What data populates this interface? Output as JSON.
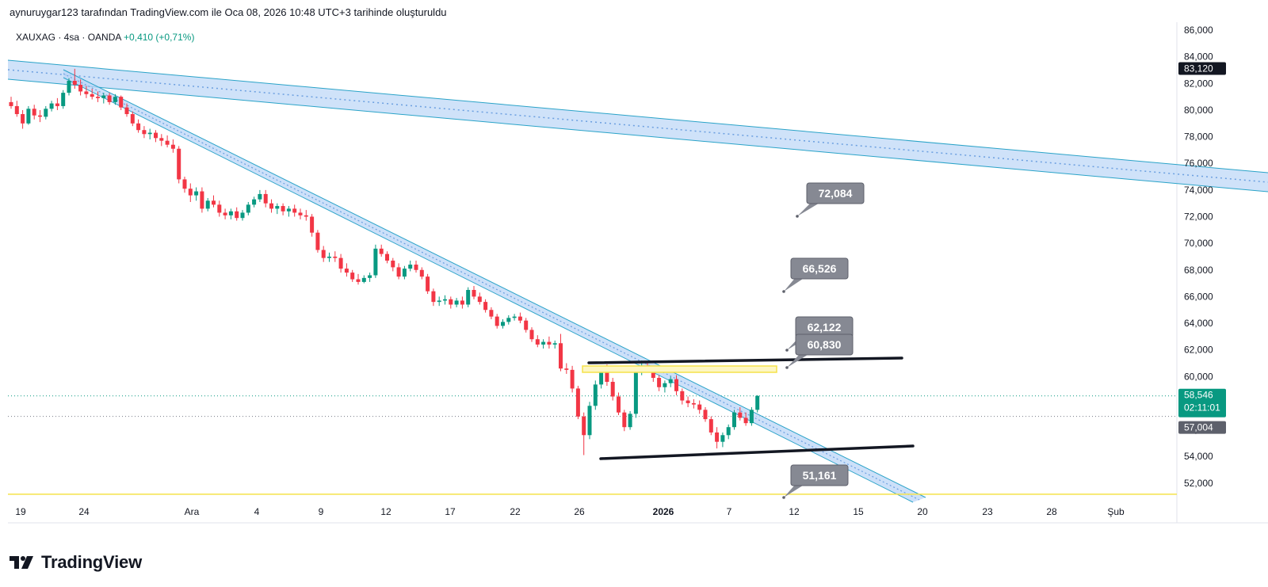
{
  "header": {
    "caption": "aynuruygar123 tarafından TradingView.com ile Oca 08, 2026 10:48 UTC+3 tarihinde oluşturuldu"
  },
  "symbol": {
    "name": "XAUXAG · 4sa · OANDA",
    "change": "+0,410 (+0,71%)"
  },
  "brand": {
    "name": "TradingView"
  },
  "colors": {
    "up": "#089981",
    "down": "#f23645",
    "channel_fill": "#bbd6f7",
    "channel_line": "#2aa3c8",
    "box_yellow": "#f5e24a",
    "hline_yellow": "#f5e24a",
    "callout": "#868993"
  },
  "chart_data": {
    "type": "candlestick",
    "y_axis": {
      "min": 50800,
      "max": 86600,
      "ticks": [
        "86,000",
        "84,000",
        "82,000",
        "80,000",
        "78,000",
        "76,000",
        "74,000",
        "72,000",
        "70,000",
        "68,000",
        "66,000",
        "64,000",
        "62,000",
        "60,000",
        "58,000",
        "56,000",
        "54,000",
        "52,000"
      ]
    },
    "x_axis": {
      "ticks": [
        "19",
        "24",
        "Ara",
        "4",
        "9",
        "12",
        "17",
        "22",
        "26",
        "2026",
        "7",
        "12",
        "15",
        "20",
        "23",
        "28",
        "Şub"
      ]
    },
    "price_labels": {
      "high_marker": "83,120",
      "last_price": "58,546",
      "countdown": "02:11:01",
      "prev_close": "57,004"
    },
    "callouts": [
      "72,084",
      "66,526",
      "62,122",
      "60,830",
      "51,161"
    ],
    "horizontal_line": 51161,
    "series": [
      {
        "t": 0,
        "o": 80600,
        "h": 81000,
        "l": 80100,
        "c": 80300
      },
      {
        "t": 1,
        "o": 80300,
        "h": 80700,
        "l": 79500,
        "c": 79700
      },
      {
        "t": 2,
        "o": 79700,
        "h": 80000,
        "l": 78600,
        "c": 79000
      },
      {
        "t": 3,
        "o": 79000,
        "h": 80300,
        "l": 78900,
        "c": 80100
      },
      {
        "t": 4,
        "o": 80100,
        "h": 80400,
        "l": 79300,
        "c": 79600
      },
      {
        "t": 5,
        "o": 79600,
        "h": 80000,
        "l": 79100,
        "c": 79500
      },
      {
        "t": 6,
        "o": 79500,
        "h": 80300,
        "l": 79300,
        "c": 80100
      },
      {
        "t": 7,
        "o": 80100,
        "h": 80700,
        "l": 79900,
        "c": 80500
      },
      {
        "t": 8,
        "o": 80500,
        "h": 80900,
        "l": 80000,
        "c": 80300
      },
      {
        "t": 9,
        "o": 80300,
        "h": 81500,
        "l": 80100,
        "c": 81300
      },
      {
        "t": 10,
        "o": 81300,
        "h": 82400,
        "l": 81100,
        "c": 82200
      },
      {
        "t": 11,
        "o": 82200,
        "h": 83100,
        "l": 81600,
        "c": 81900
      },
      {
        "t": 12,
        "o": 81900,
        "h": 82300,
        "l": 81100,
        "c": 81400
      },
      {
        "t": 13,
        "o": 81400,
        "h": 81800,
        "l": 80900,
        "c": 81200
      },
      {
        "t": 14,
        "o": 81200,
        "h": 81600,
        "l": 80800,
        "c": 81000
      },
      {
        "t": 15,
        "o": 81000,
        "h": 81400,
        "l": 80600,
        "c": 80900
      },
      {
        "t": 16,
        "o": 80900,
        "h": 81300,
        "l": 80500,
        "c": 81100
      },
      {
        "t": 17,
        "o": 81100,
        "h": 81300,
        "l": 80400,
        "c": 80600
      },
      {
        "t": 18,
        "o": 80600,
        "h": 81200,
        "l": 80400,
        "c": 81000
      },
      {
        "t": 19,
        "o": 81000,
        "h": 81100,
        "l": 80000,
        "c": 80200
      },
      {
        "t": 20,
        "o": 80200,
        "h": 80500,
        "l": 79500,
        "c": 79700
      },
      {
        "t": 21,
        "o": 79700,
        "h": 79900,
        "l": 78800,
        "c": 79000
      },
      {
        "t": 22,
        "o": 79000,
        "h": 79300,
        "l": 78300,
        "c": 78500
      },
      {
        "t": 23,
        "o": 78500,
        "h": 78800,
        "l": 77900,
        "c": 78200
      },
      {
        "t": 24,
        "o": 78200,
        "h": 78600,
        "l": 77800,
        "c": 78300
      },
      {
        "t": 25,
        "o": 78300,
        "h": 78500,
        "l": 77600,
        "c": 77900
      },
      {
        "t": 26,
        "o": 77900,
        "h": 78200,
        "l": 77300,
        "c": 77700
      },
      {
        "t": 27,
        "o": 77700,
        "h": 78100,
        "l": 77200,
        "c": 77400
      },
      {
        "t": 28,
        "o": 77400,
        "h": 77800,
        "l": 76800,
        "c": 77100
      },
      {
        "t": 29,
        "o": 77100,
        "h": 77300,
        "l": 74500,
        "c": 74800
      },
      {
        "t": 30,
        "o": 74800,
        "h": 75000,
        "l": 73800,
        "c": 74100
      },
      {
        "t": 31,
        "o": 74100,
        "h": 74500,
        "l": 73100,
        "c": 73600
      },
      {
        "t": 32,
        "o": 73600,
        "h": 74200,
        "l": 73200,
        "c": 73900
      },
      {
        "t": 33,
        "o": 73900,
        "h": 74200,
        "l": 72300,
        "c": 72600
      },
      {
        "t": 34,
        "o": 72600,
        "h": 73400,
        "l": 72400,
        "c": 73200
      },
      {
        "t": 35,
        "o": 73200,
        "h": 73600,
        "l": 72700,
        "c": 72900
      },
      {
        "t": 36,
        "o": 72900,
        "h": 73200,
        "l": 72000,
        "c": 72300
      },
      {
        "t": 37,
        "o": 72300,
        "h": 72600,
        "l": 71800,
        "c": 72100
      },
      {
        "t": 38,
        "o": 72100,
        "h": 72600,
        "l": 71800,
        "c": 72400
      },
      {
        "t": 39,
        "o": 72400,
        "h": 72700,
        "l": 71700,
        "c": 71900
      },
      {
        "t": 40,
        "o": 71900,
        "h": 72500,
        "l": 71700,
        "c": 72300
      },
      {
        "t": 41,
        "o": 72300,
        "h": 73100,
        "l": 72100,
        "c": 72900
      },
      {
        "t": 42,
        "o": 72900,
        "h": 73500,
        "l": 72700,
        "c": 73300
      },
      {
        "t": 43,
        "o": 73300,
        "h": 74000,
        "l": 73100,
        "c": 73700
      },
      {
        "t": 44,
        "o": 73700,
        "h": 74000,
        "l": 72700,
        "c": 73000
      },
      {
        "t": 45,
        "o": 73000,
        "h": 73300,
        "l": 72300,
        "c": 72600
      },
      {
        "t": 46,
        "o": 72600,
        "h": 73000,
        "l": 72200,
        "c": 72800
      },
      {
        "t": 47,
        "o": 72800,
        "h": 73000,
        "l": 72100,
        "c": 72400
      },
      {
        "t": 48,
        "o": 72400,
        "h": 72800,
        "l": 72000,
        "c": 72600
      },
      {
        "t": 49,
        "o": 72600,
        "h": 72900,
        "l": 72000,
        "c": 72300
      },
      {
        "t": 50,
        "o": 72300,
        "h": 72600,
        "l": 71800,
        "c": 72100
      },
      {
        "t": 51,
        "o": 72100,
        "h": 72500,
        "l": 71700,
        "c": 72000
      },
      {
        "t": 52,
        "o": 72000,
        "h": 72200,
        "l": 70500,
        "c": 70800
      },
      {
        "t": 53,
        "o": 70800,
        "h": 71000,
        "l": 69300,
        "c": 69500
      },
      {
        "t": 54,
        "o": 69500,
        "h": 69800,
        "l": 68600,
        "c": 68900
      },
      {
        "t": 55,
        "o": 68900,
        "h": 69300,
        "l": 68600,
        "c": 69000
      },
      {
        "t": 56,
        "o": 69000,
        "h": 69400,
        "l": 68600,
        "c": 68900
      },
      {
        "t": 57,
        "o": 68900,
        "h": 69200,
        "l": 67800,
        "c": 68100
      },
      {
        "t": 58,
        "o": 68100,
        "h": 68500,
        "l": 67500,
        "c": 67800
      },
      {
        "t": 59,
        "o": 67800,
        "h": 68000,
        "l": 67100,
        "c": 67300
      },
      {
        "t": 60,
        "o": 67300,
        "h": 67700,
        "l": 66900,
        "c": 67100
      },
      {
        "t": 61,
        "o": 67100,
        "h": 67600,
        "l": 67000,
        "c": 67400
      },
      {
        "t": 62,
        "o": 67400,
        "h": 67800,
        "l": 67100,
        "c": 67600
      },
      {
        "t": 63,
        "o": 67600,
        "h": 69900,
        "l": 67400,
        "c": 69600
      },
      {
        "t": 64,
        "o": 69600,
        "h": 69900,
        "l": 69000,
        "c": 69200
      },
      {
        "t": 65,
        "o": 69200,
        "h": 69400,
        "l": 68500,
        "c": 68700
      },
      {
        "t": 66,
        "o": 68700,
        "h": 68900,
        "l": 67900,
        "c": 68200
      },
      {
        "t": 67,
        "o": 68200,
        "h": 68500,
        "l": 67300,
        "c": 67500
      },
      {
        "t": 68,
        "o": 67500,
        "h": 68300,
        "l": 67300,
        "c": 68100
      },
      {
        "t": 69,
        "o": 68100,
        "h": 68700,
        "l": 67900,
        "c": 68400
      },
      {
        "t": 70,
        "o": 68400,
        "h": 68700,
        "l": 67800,
        "c": 68000
      },
      {
        "t": 71,
        "o": 68000,
        "h": 68200,
        "l": 67300,
        "c": 67500
      },
      {
        "t": 72,
        "o": 67500,
        "h": 67700,
        "l": 66200,
        "c": 66400
      },
      {
        "t": 73,
        "o": 66400,
        "h": 66600,
        "l": 65300,
        "c": 65600
      },
      {
        "t": 74,
        "o": 65600,
        "h": 66000,
        "l": 65300,
        "c": 65700
      },
      {
        "t": 75,
        "o": 65700,
        "h": 66100,
        "l": 65400,
        "c": 65800
      },
      {
        "t": 76,
        "o": 65800,
        "h": 66000,
        "l": 65100,
        "c": 65400
      },
      {
        "t": 77,
        "o": 65400,
        "h": 65900,
        "l": 65200,
        "c": 65700
      },
      {
        "t": 78,
        "o": 65700,
        "h": 66000,
        "l": 65100,
        "c": 65400
      },
      {
        "t": 79,
        "o": 65400,
        "h": 66700,
        "l": 65200,
        "c": 66500
      },
      {
        "t": 80,
        "o": 66500,
        "h": 66800,
        "l": 65800,
        "c": 66000
      },
      {
        "t": 81,
        "o": 66000,
        "h": 66300,
        "l": 65400,
        "c": 65600
      },
      {
        "t": 82,
        "o": 65600,
        "h": 65800,
        "l": 64800,
        "c": 65000
      },
      {
        "t": 83,
        "o": 65000,
        "h": 65200,
        "l": 64300,
        "c": 64500
      },
      {
        "t": 84,
        "o": 64500,
        "h": 64700,
        "l": 63600,
        "c": 63800
      },
      {
        "t": 85,
        "o": 63800,
        "h": 64300,
        "l": 63600,
        "c": 64100
      },
      {
        "t": 86,
        "o": 64100,
        "h": 64600,
        "l": 63900,
        "c": 64400
      },
      {
        "t": 87,
        "o": 64400,
        "h": 64700,
        "l": 64200,
        "c": 64500
      },
      {
        "t": 88,
        "o": 64500,
        "h": 64800,
        "l": 64000,
        "c": 64200
      },
      {
        "t": 89,
        "o": 64200,
        "h": 64400,
        "l": 63300,
        "c": 63500
      },
      {
        "t": 90,
        "o": 63500,
        "h": 63700,
        "l": 62600,
        "c": 62800
      },
      {
        "t": 91,
        "o": 62800,
        "h": 63100,
        "l": 62200,
        "c": 62400
      },
      {
        "t": 92,
        "o": 62400,
        "h": 62800,
        "l": 62100,
        "c": 62600
      },
      {
        "t": 93,
        "o": 62600,
        "h": 63000,
        "l": 62100,
        "c": 62400
      },
      {
        "t": 94,
        "o": 62400,
        "h": 62700,
        "l": 62100,
        "c": 62500
      },
      {
        "t": 95,
        "o": 62500,
        "h": 63200,
        "l": 60400,
        "c": 60600
      },
      {
        "t": 96,
        "o": 60600,
        "h": 61000,
        "l": 60200,
        "c": 60500
      },
      {
        "t": 97,
        "o": 60500,
        "h": 60800,
        "l": 58800,
        "c": 59100
      },
      {
        "t": 98,
        "o": 59100,
        "h": 59300,
        "l": 56800,
        "c": 57000
      },
      {
        "t": 99,
        "o": 57000,
        "h": 57300,
        "l": 54100,
        "c": 55600
      },
      {
        "t": 100,
        "o": 55600,
        "h": 58100,
        "l": 55300,
        "c": 57800
      },
      {
        "t": 101,
        "o": 57800,
        "h": 59700,
        "l": 57500,
        "c": 59400
      },
      {
        "t": 102,
        "o": 59400,
        "h": 60800,
        "l": 59100,
        "c": 60500
      },
      {
        "t": 103,
        "o": 60500,
        "h": 60900,
        "l": 59300,
        "c": 59600
      },
      {
        "t": 104,
        "o": 59600,
        "h": 59900,
        "l": 58200,
        "c": 58500
      },
      {
        "t": 105,
        "o": 58500,
        "h": 58800,
        "l": 57100,
        "c": 57300
      },
      {
        "t": 106,
        "o": 57300,
        "h": 57500,
        "l": 55900,
        "c": 56200
      },
      {
        "t": 107,
        "o": 56200,
        "h": 57400,
        "l": 56000,
        "c": 57200
      },
      {
        "t": 108,
        "o": 57200,
        "h": 60700,
        "l": 56900,
        "c": 60400
      },
      {
        "t": 109,
        "o": 60400,
        "h": 61200,
        "l": 60100,
        "c": 60800
      },
      {
        "t": 110,
        "o": 60800,
        "h": 61100,
        "l": 60300,
        "c": 60600
      },
      {
        "t": 111,
        "o": 60600,
        "h": 60800,
        "l": 59600,
        "c": 59900
      },
      {
        "t": 112,
        "o": 59900,
        "h": 60100,
        "l": 58900,
        "c": 59200
      },
      {
        "t": 113,
        "o": 59200,
        "h": 59700,
        "l": 58800,
        "c": 59500
      },
      {
        "t": 114,
        "o": 59500,
        "h": 60000,
        "l": 59200,
        "c": 59800
      },
      {
        "t": 115,
        "o": 59800,
        "h": 60100,
        "l": 58600,
        "c": 58900
      },
      {
        "t": 116,
        "o": 58900,
        "h": 59100,
        "l": 57900,
        "c": 58200
      },
      {
        "t": 117,
        "o": 58200,
        "h": 58500,
        "l": 57700,
        "c": 58000
      },
      {
        "t": 118,
        "o": 58000,
        "h": 58300,
        "l": 57600,
        "c": 57900
      },
      {
        "t": 119,
        "o": 57900,
        "h": 58200,
        "l": 57200,
        "c": 57500
      },
      {
        "t": 120,
        "o": 57500,
        "h": 57700,
        "l": 56600,
        "c": 56800
      },
      {
        "t": 121,
        "o": 56800,
        "h": 57000,
        "l": 55600,
        "c": 55800
      },
      {
        "t": 122,
        "o": 55800,
        "h": 56200,
        "l": 54600,
        "c": 55100
      },
      {
        "t": 123,
        "o": 55100,
        "h": 55800,
        "l": 54700,
        "c": 55600
      },
      {
        "t": 124,
        "o": 55600,
        "h": 56400,
        "l": 55300,
        "c": 56200
      },
      {
        "t": 125,
        "o": 56200,
        "h": 57500,
        "l": 56000,
        "c": 57300
      },
      {
        "t": 126,
        "o": 57300,
        "h": 57700,
        "l": 56700,
        "c": 56900
      },
      {
        "t": 127,
        "o": 56900,
        "h": 57300,
        "l": 56300,
        "c": 56500
      },
      {
        "t": 128,
        "o": 56500,
        "h": 57700,
        "l": 56300,
        "c": 57500
      },
      {
        "t": 129,
        "o": 57500,
        "h": 58600,
        "l": 57300,
        "c": 58546
      }
    ]
  }
}
